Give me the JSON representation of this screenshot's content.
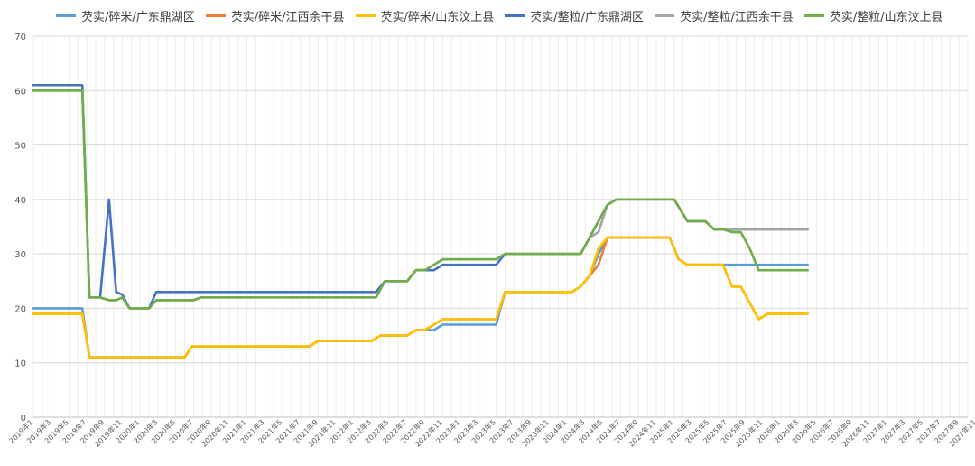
{
  "chart_data": {
    "type": "line",
    "title": "",
    "xlabel": "",
    "ylabel": "",
    "ylim": [
      0,
      70
    ],
    "yticks": [
      0,
      10,
      20,
      30,
      40,
      50,
      60,
      70
    ],
    "grid": true,
    "legend_position": "top",
    "categories": [
      "2019年1",
      "2019年3",
      "2019年5",
      "2019年7",
      "2019年9",
      "2019年11",
      "2020年1",
      "2020年3",
      "2020年5",
      "2020年7",
      "2020年9",
      "2020年11",
      "2021年1",
      "2021年3",
      "2021年5",
      "2021年7",
      "2021年9",
      "2021年11",
      "2022年1",
      "2022年3",
      "2022年5",
      "2022年7",
      "2022年9",
      "2022年11",
      "2023年1",
      "2023年3",
      "2023年5",
      "2023年7",
      "2023年9",
      "2023年11",
      "2024年1",
      "2024年3",
      "2024年5",
      "2024年7",
      "2024年9",
      "2024年11",
      "2025年1",
      "2025年3",
      "2025年5",
      "2025年7",
      "2025年9",
      "2025年11",
      "2026年1",
      "2026年3",
      "2026年5",
      "2026年7",
      "2026年9",
      "2026年11",
      "2027年1",
      "2027年3",
      "2027年5",
      "2027年7",
      "2027年9",
      "2027年11"
    ],
    "series": [
      {
        "name": "芡实/碎米/广东鼎湖区",
        "color": "#5B9BD5",
        "points": [
          [
            0,
            20
          ],
          [
            5.5,
            20
          ],
          [
            6.3,
            11
          ],
          [
            17,
            11
          ],
          [
            17.8,
            13
          ],
          [
            31,
            13
          ],
          [
            32,
            14
          ],
          [
            38,
            14
          ],
          [
            39,
            15
          ],
          [
            42,
            15
          ],
          [
            43,
            16
          ],
          [
            45,
            16
          ],
          [
            46,
            17
          ],
          [
            52,
            17
          ],
          [
            53,
            23
          ],
          [
            60.5,
            23
          ],
          [
            61.5,
            24
          ],
          [
            62.5,
            26
          ],
          [
            63.5,
            30
          ],
          [
            64.5,
            33
          ],
          [
            71.5,
            33
          ],
          [
            72.5,
            29
          ],
          [
            73.5,
            28
          ],
          [
            77,
            28
          ],
          [
            77.5,
            28
          ],
          [
            87,
            28
          ]
        ]
      },
      {
        "name": "芡实/碎米/江西余干县",
        "color": "#ED7D31",
        "points": [
          [
            0,
            19
          ],
          [
            5.5,
            19
          ],
          [
            6.3,
            11
          ],
          [
            17,
            11
          ],
          [
            17.8,
            13
          ],
          [
            31,
            13
          ],
          [
            32,
            14
          ],
          [
            38,
            14
          ],
          [
            39,
            15
          ],
          [
            42,
            15
          ],
          [
            43,
            16
          ],
          [
            44,
            16
          ],
          [
            45,
            17
          ],
          [
            46,
            18
          ],
          [
            52,
            18
          ],
          [
            53,
            23
          ],
          [
            60.5,
            23
          ],
          [
            61.5,
            24
          ],
          [
            62.5,
            26
          ],
          [
            63.5,
            28
          ],
          [
            64.5,
            33
          ],
          [
            71.5,
            33
          ],
          [
            72.5,
            29
          ],
          [
            73.5,
            28
          ],
          [
            77.5,
            28
          ],
          [
            78.5,
            24
          ],
          [
            79.5,
            24
          ],
          [
            81.5,
            18
          ],
          [
            82.5,
            19
          ],
          [
            87,
            19
          ]
        ]
      },
      {
        "name": "芡实/碎米/山东汶上县",
        "color": "#FFC000",
        "points": [
          [
            0,
            19
          ],
          [
            5.5,
            19
          ],
          [
            6.3,
            11
          ],
          [
            17,
            11
          ],
          [
            17.8,
            13
          ],
          [
            31,
            13
          ],
          [
            32,
            14
          ],
          [
            38,
            14
          ],
          [
            39,
            15
          ],
          [
            42,
            15
          ],
          [
            43,
            16
          ],
          [
            44,
            16
          ],
          [
            45,
            17
          ],
          [
            46,
            18
          ],
          [
            52,
            18
          ],
          [
            53,
            23
          ],
          [
            60.5,
            23
          ],
          [
            61.5,
            24
          ],
          [
            62.5,
            26
          ],
          [
            63.5,
            31
          ],
          [
            64.5,
            33
          ],
          [
            71.5,
            33
          ],
          [
            72.5,
            29
          ],
          [
            73.5,
            28
          ],
          [
            77.5,
            28
          ],
          [
            78.5,
            24
          ],
          [
            79.5,
            24
          ],
          [
            81.5,
            18
          ],
          [
            82.5,
            19
          ],
          [
            87,
            19
          ]
        ]
      },
      {
        "name": "芡实/整粒/广东鼎湖区",
        "color": "#4472C4",
        "points": [
          [
            0,
            61
          ],
          [
            5.5,
            61
          ],
          [
            6.3,
            22
          ],
          [
            7.5,
            22
          ],
          [
            8.5,
            40
          ],
          [
            9.3,
            23
          ],
          [
            10,
            22.5
          ],
          [
            10.8,
            20
          ],
          [
            13,
            20
          ],
          [
            13.8,
            23
          ],
          [
            38.5,
            23
          ],
          [
            39.5,
            25
          ],
          [
            42,
            25
          ],
          [
            43,
            27
          ],
          [
            45,
            27
          ],
          [
            46,
            28
          ],
          [
            52,
            28
          ],
          [
            53,
            30
          ],
          [
            61.5,
            30
          ],
          [
            63.5,
            36
          ],
          [
            64.5,
            39
          ],
          [
            65.5,
            40
          ],
          [
            72,
            40
          ],
          [
            73.5,
            36
          ],
          [
            75.5,
            36
          ],
          [
            76.5,
            34.5
          ],
          [
            87,
            34.5
          ]
        ]
      },
      {
        "name": "芡实/整粒/江西余干县",
        "color": "#A5A5A5",
        "points": [
          [
            0,
            60
          ],
          [
            5.5,
            60
          ],
          [
            6.3,
            22
          ],
          [
            7.5,
            22
          ],
          [
            8.5,
            21.5
          ],
          [
            9.3,
            21.5
          ],
          [
            10,
            22
          ],
          [
            10.8,
            20
          ],
          [
            13,
            20
          ],
          [
            13.8,
            21.5
          ],
          [
            18,
            21.5
          ],
          [
            18.8,
            22
          ],
          [
            38.5,
            22
          ],
          [
            39.5,
            25
          ],
          [
            42,
            25
          ],
          [
            43,
            27
          ],
          [
            44,
            27
          ],
          [
            46,
            29
          ],
          [
            52,
            29
          ],
          [
            53,
            30
          ],
          [
            61.5,
            30
          ],
          [
            62.5,
            33
          ],
          [
            63.5,
            34
          ],
          [
            64.5,
            39
          ],
          [
            65.5,
            40
          ],
          [
            72,
            40
          ],
          [
            73.5,
            36
          ],
          [
            75.5,
            36
          ],
          [
            76.5,
            34.5
          ],
          [
            87,
            34.5
          ]
        ]
      },
      {
        "name": "芡实/整粒/山东汶上县",
        "color": "#70AD47",
        "points": [
          [
            0,
            60
          ],
          [
            5.5,
            60
          ],
          [
            6.3,
            22
          ],
          [
            7.5,
            22
          ],
          [
            8.5,
            21.5
          ],
          [
            9.3,
            21.5
          ],
          [
            10,
            22
          ],
          [
            10.8,
            20
          ],
          [
            13,
            20
          ],
          [
            13.8,
            21.5
          ],
          [
            18,
            21.5
          ],
          [
            18.8,
            22
          ],
          [
            38.5,
            22
          ],
          [
            39.5,
            25
          ],
          [
            42,
            25
          ],
          [
            43,
            27
          ],
          [
            44,
            27
          ],
          [
            46,
            29
          ],
          [
            52,
            29
          ],
          [
            53,
            30
          ],
          [
            61.5,
            30
          ],
          [
            62.5,
            33
          ],
          [
            64.5,
            39
          ],
          [
            65.5,
            40
          ],
          [
            72,
            40
          ],
          [
            73.5,
            36
          ],
          [
            75.5,
            36
          ],
          [
            76.5,
            34.5
          ],
          [
            77.5,
            34.5
          ],
          [
            78.5,
            34
          ],
          [
            79.5,
            34
          ],
          [
            80.5,
            31
          ],
          [
            81.5,
            27
          ],
          [
            87,
            27
          ]
        ]
      }
    ]
  }
}
